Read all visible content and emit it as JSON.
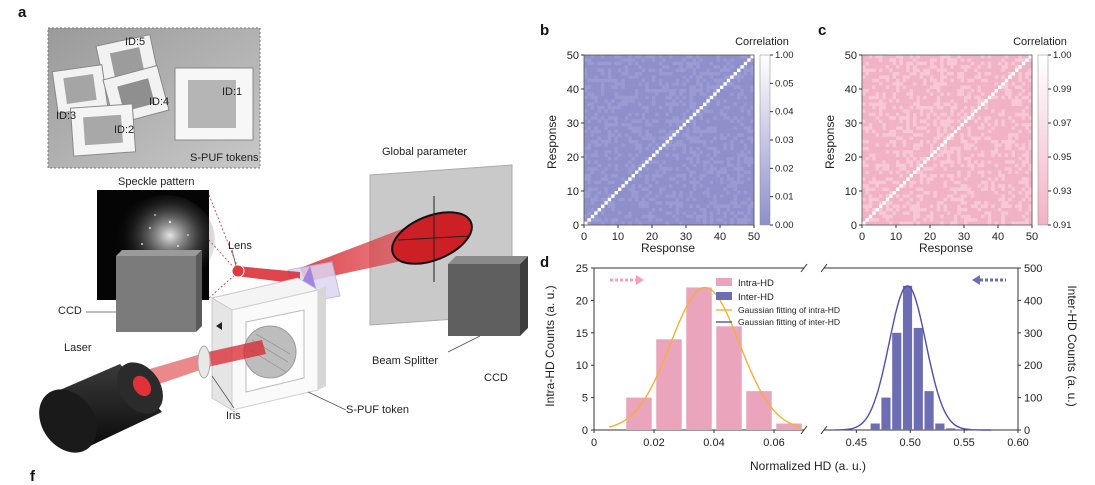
{
  "panels": {
    "a": "a",
    "b": "b",
    "c": "c",
    "d": "d",
    "f": "f"
  },
  "setup": {
    "tokens_caption": "S-PUF tokens",
    "token_ids": [
      "ID:5",
      "ID:4",
      "ID:3",
      "ID:2",
      "ID:1"
    ],
    "speckle_pattern": "Speckle pattern",
    "global_parameter": "Global parameter",
    "lens": "Lens",
    "ccd_left": "CCD",
    "ccd_right": "CCD",
    "laser": "Laser",
    "iris": "Iris",
    "beam_splitter": "Beam Splitter",
    "spuf_token": "S-PUF token"
  },
  "colors": {
    "laser_red": "#d8262e",
    "heatmap_blue": "#8e8fcb",
    "heatmap_pink": "#f2b2c6",
    "intra_bar": "#eaa4bb",
    "inter_bar": "#6d6db4",
    "intra_fit": "#f2b138",
    "inter_fit": "#4e4eb0"
  },
  "chart_data": [
    {
      "type": "heatmap",
      "panel": "b",
      "xlabel": "Response",
      "ylabel": "Response",
      "xlim": [
        0,
        50
      ],
      "ylim": [
        0,
        50
      ],
      "xticks": [
        "0",
        "10",
        "20",
        "30",
        "40",
        "50"
      ],
      "yticks": [
        "0",
        "10",
        "20",
        "30",
        "40",
        "50"
      ],
      "colorbar_title": "Correlation",
      "colorbar_ticks": [
        "1.00",
        "0.05",
        "0.04",
        "0.03",
        "0.02",
        "0.01",
        "0.00"
      ],
      "colorbar_range": [
        0.0,
        1.0
      ],
      "diagonal_value": 1.0,
      "off_diagonal_approx": 0.01
    },
    {
      "type": "heatmap",
      "panel": "c",
      "xlabel": "Response",
      "ylabel": "Response",
      "xlim": [
        0,
        50
      ],
      "ylim": [
        0,
        50
      ],
      "xticks": [
        "0",
        "10",
        "20",
        "30",
        "40",
        "50"
      ],
      "yticks": [
        "0",
        "10",
        "20",
        "30",
        "40",
        "50"
      ],
      "colorbar_title": "Correlation",
      "colorbar_ticks": [
        "1.00",
        "0.99",
        "0.97",
        "0.95",
        "0.93",
        "0.91"
      ],
      "colorbar_range": [
        0.91,
        1.0
      ],
      "diagonal_value": 1.0,
      "off_diagonal_approx": 0.95
    },
    {
      "type": "bar",
      "panel": "d",
      "xlabel": "Normalized HD (a. u.)",
      "ylabel_left": "Intra-HD Counts (a. u.)",
      "ylabel_right": "Inter-HD Counts (a. u.)",
      "left_ylim": [
        0,
        25
      ],
      "right_ylim": [
        0,
        500
      ],
      "left_yticks": [
        "0",
        "5",
        "10",
        "15",
        "20",
        "25"
      ],
      "right_yticks": [
        "0",
        "100",
        "200",
        "300",
        "400",
        "500"
      ],
      "xticks_left": [
        "0",
        "0.02",
        "0.04",
        "0.06"
      ],
      "xticks_right": [
        "0.45",
        "0.50",
        "0.55",
        "0.60"
      ],
      "legend": [
        "Intra-HD",
        "Inter-HD",
        "Gaussian fitting of intra-HD",
        "Gaussian fitting of inter-HD"
      ],
      "series": [
        {
          "name": "Intra-HD",
          "x": [
            0.015,
            0.025,
            0.035,
            0.045,
            0.055,
            0.065
          ],
          "values": [
            5,
            14,
            22,
            16,
            6,
            1
          ]
        },
        {
          "name": "Inter-HD",
          "x": [
            0.4675,
            0.4775,
            0.4875,
            0.4975,
            0.5075,
            0.5175,
            0.5275,
            0.5375
          ],
          "values": [
            20,
            100,
            300,
            445,
            315,
            120,
            20,
            5
          ]
        }
      ],
      "fits": [
        {
          "name": "Gaussian fitting of intra-HD",
          "mean": 0.037,
          "sigma": 0.0115,
          "peak": 22
        },
        {
          "name": "Gaussian fitting of inter-HD",
          "mean": 0.4975,
          "sigma": 0.017,
          "peak": 445
        }
      ]
    }
  ]
}
